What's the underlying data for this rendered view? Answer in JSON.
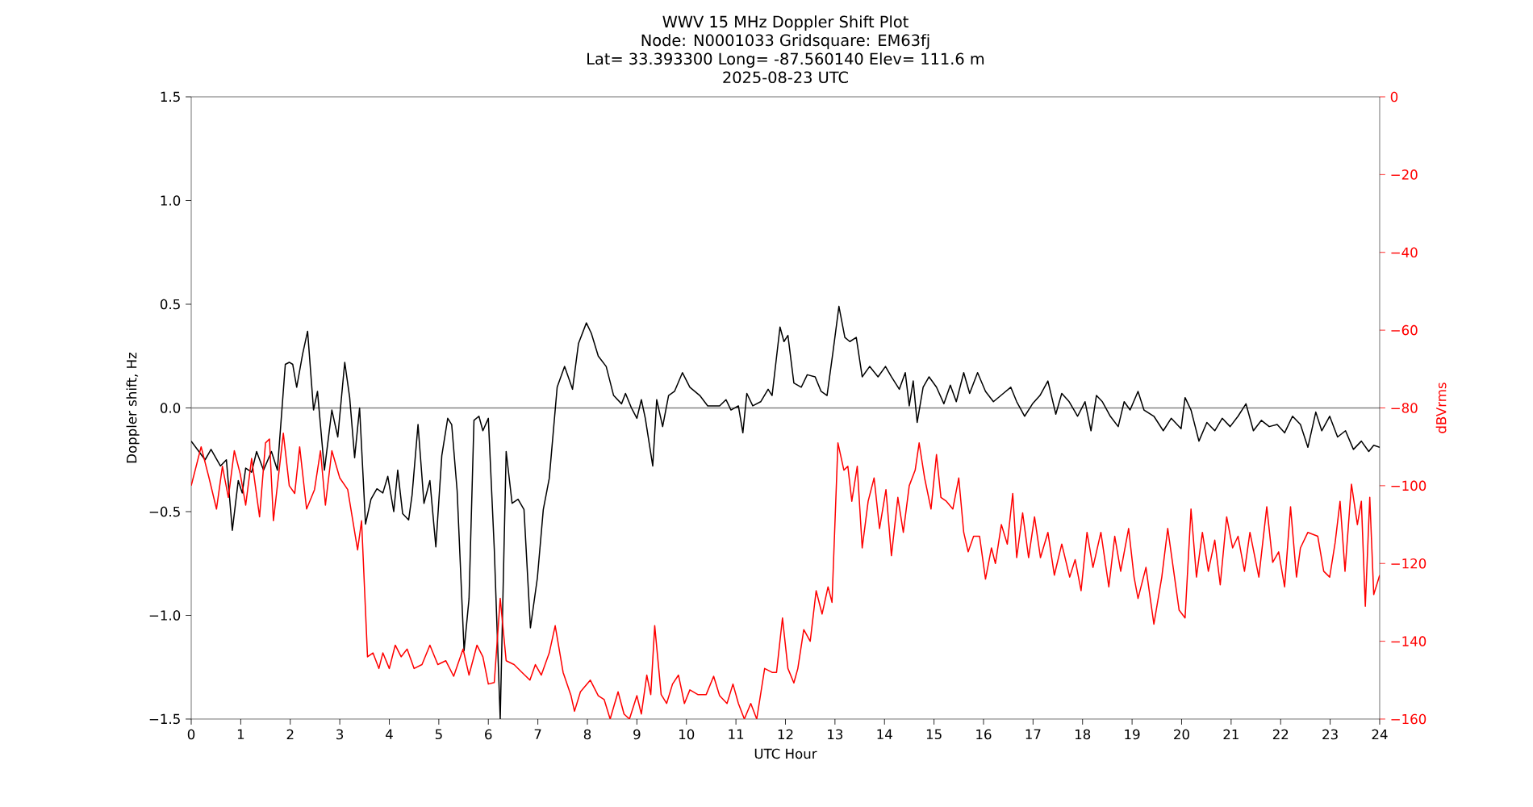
{
  "chart_data": {
    "type": "line",
    "title": "WWV 15 MHz Doppler Shift Plot",
    "subtitle": "Node:  N0001033     Gridsquare:  EM63fj",
    "annotations": [
      "Lat= 33.393300    Long= -87.560140    Elev= 111.6 m",
      "2025-08-23  UTC"
    ],
    "xlabel": "UTC Hour",
    "ylabel": "Doppler shift, Hz",
    "y2label": "dBVrms",
    "xlim": [
      0,
      24
    ],
    "xticks": [
      0,
      1,
      2,
      3,
      4,
      5,
      6,
      7,
      8,
      9,
      10,
      11,
      12,
      13,
      14,
      15,
      16,
      17,
      18,
      19,
      20,
      21,
      22,
      23,
      24
    ],
    "ylim": [
      -1.5,
      1.5
    ],
    "yticks": [
      {
        "value": -1.5,
        "label": "−1.5"
      },
      {
        "value": -1.0,
        "label": "−1.0"
      },
      {
        "value": -0.5,
        "label": "−0.5"
      },
      {
        "value": 0,
        "label": "0.0"
      },
      {
        "value": 0.5,
        "label": "0.5"
      },
      {
        "value": 1.0,
        "label": "1.0"
      },
      {
        "value": 1.5,
        "label": "1.5"
      }
    ],
    "y2lim": [
      -160,
      0
    ],
    "y2ticks": [
      {
        "value": -160,
        "label": "−160"
      },
      {
        "value": -140,
        "label": "−140"
      },
      {
        "value": -120,
        "label": "−120"
      },
      {
        "value": -100,
        "label": "−100"
      },
      {
        "value": -80,
        "label": "−80"
      },
      {
        "value": -60,
        "label": "−60"
      },
      {
        "value": -40,
        "label": "−40"
      },
      {
        "value": -20,
        "label": "−20"
      },
      {
        "value": 0,
        "label": "0"
      }
    ],
    "ref_lines": [
      {
        "axis": "y",
        "value": 0,
        "color": "#808080"
      }
    ],
    "series": [
      {
        "color": "#000000",
        "x": [
          0,
          0.28,
          0.4,
          0.59,
          0.71,
          0.83,
          0.95,
          1.03,
          1.1,
          1.22,
          1.32,
          1.46,
          1.62,
          1.74,
          1.9,
          1.98,
          2.05,
          2.13,
          2.25,
          2.35,
          2.47,
          2.55,
          2.69,
          2.84,
          2.96,
          3.1,
          3.2,
          3.3,
          3.4,
          3.52,
          3.63,
          3.75,
          3.87,
          3.97,
          4.09,
          4.17,
          4.27,
          4.39,
          4.46,
          4.58,
          4.7,
          4.82,
          4.94,
          5.06,
          5.18,
          5.26,
          5.37,
          5.51,
          5.61,
          5.71,
          5.81,
          5.89,
          6.0,
          6.12,
          6.24,
          6.36,
          6.48,
          6.6,
          6.72,
          6.85,
          6.99,
          7.11,
          7.23,
          7.39,
          7.54,
          7.7,
          7.82,
          7.98,
          8.08,
          8.22,
          8.38,
          8.53,
          8.69,
          8.77,
          8.89,
          9.0,
          9.09,
          9.17,
          9.32,
          9.4,
          9.52,
          9.64,
          9.76,
          9.92,
          10.07,
          10.27,
          10.43,
          10.55,
          10.67,
          10.8,
          10.9,
          11.05,
          11.14,
          11.22,
          11.34,
          11.5,
          11.65,
          11.73,
          11.89,
          11.97,
          12.05,
          12.17,
          12.32,
          12.44,
          12.6,
          12.72,
          12.84,
          12.96,
          13.08,
          13.2,
          13.3,
          13.43,
          13.55,
          13.7,
          13.87,
          14.02,
          14.14,
          14.3,
          14.42,
          14.5,
          14.58,
          14.66,
          14.78,
          14.9,
          15.05,
          15.2,
          15.33,
          15.45,
          15.6,
          15.72,
          15.88,
          16.04,
          16.2,
          16.4,
          16.55,
          16.67,
          16.83,
          16.99,
          17.14,
          17.3,
          17.46,
          17.58,
          17.73,
          17.9,
          18.05,
          18.17,
          18.28,
          18.4,
          18.56,
          18.72,
          18.84,
          18.96,
          19.12,
          19.24,
          19.44,
          19.63,
          19.79,
          19.99,
          20.07,
          20.19,
          20.35,
          20.51,
          20.67,
          20.82,
          20.98,
          21.14,
          21.3,
          21.45,
          21.61,
          21.77,
          21.93,
          22.08,
          22.24,
          22.4,
          22.55,
          22.71,
          22.83,
          22.99,
          23.15,
          23.31,
          23.47,
          23.63,
          23.78,
          23.88,
          24
        ],
        "values": [
          -0.16,
          -0.25,
          -0.2,
          -0.28,
          -0.25,
          -0.59,
          -0.35,
          -0.41,
          -0.29,
          -0.31,
          -0.21,
          -0.3,
          -0.21,
          -0.3,
          0.21,
          0.22,
          0.21,
          0.1,
          0.26,
          0.37,
          -0.01,
          0.08,
          -0.3,
          -0.01,
          -0.14,
          0.22,
          0.05,
          -0.24,
          0.0,
          -0.56,
          -0.44,
          -0.39,
          -0.41,
          -0.33,
          -0.5,
          -0.3,
          -0.51,
          -0.54,
          -0.42,
          -0.08,
          -0.46,
          -0.35,
          -0.67,
          -0.23,
          -0.05,
          -0.08,
          -0.4,
          -1.17,
          -0.92,
          -0.06,
          -0.04,
          -0.11,
          -0.05,
          -0.68,
          -1.5,
          -0.21,
          -0.46,
          -0.44,
          -0.49,
          -1.06,
          -0.82,
          -0.49,
          -0.34,
          0.1,
          0.2,
          0.09,
          0.31,
          0.41,
          0.36,
          0.25,
          0.2,
          0.06,
          0.02,
          0.07,
          0.0,
          -0.05,
          0.04,
          -0.05,
          -0.28,
          0.04,
          -0.09,
          0.06,
          0.08,
          0.17,
          0.1,
          0.06,
          0.01,
          0.01,
          0.01,
          0.04,
          -0.01,
          0.01,
          -0.12,
          0.07,
          0.01,
          0.03,
          0.09,
          0.06,
          0.39,
          0.32,
          0.35,
          0.12,
          0.1,
          0.16,
          0.15,
          0.08,
          0.06,
          0.27,
          0.49,
          0.34,
          0.32,
          0.34,
          0.15,
          0.2,
          0.15,
          0.2,
          0.15,
          0.09,
          0.17,
          0.01,
          0.13,
          -0.07,
          0.1,
          0.15,
          0.1,
          0.02,
          0.11,
          0.03,
          0.17,
          0.07,
          0.17,
          0.08,
          0.03,
          0.07,
          0.1,
          0.03,
          -0.04,
          0.02,
          0.06,
          0.13,
          -0.03,
          0.07,
          0.03,
          -0.04,
          0.03,
          -0.11,
          0.06,
          0.03,
          -0.04,
          -0.09,
          0.03,
          -0.01,
          0.08,
          -0.01,
          -0.04,
          -0.11,
          -0.05,
          -0.1,
          0.05,
          -0.01,
          -0.16,
          -0.07,
          -0.11,
          -0.05,
          -0.09,
          -0.04,
          0.02,
          -0.11,
          -0.06,
          -0.09,
          -0.08,
          -0.12,
          -0.04,
          -0.08,
          -0.19,
          -0.02,
          -0.11,
          -0.04,
          -0.14,
          -0.11,
          -0.2,
          -0.16,
          -0.21,
          -0.18,
          -0.19
        ]
      },
      {
        "color": "#ff0000",
        "axis": "y2",
        "x": [
          0,
          0.2,
          0.36,
          0.51,
          0.63,
          0.75,
          0.87,
          0.99,
          1.1,
          1.22,
          1.38,
          1.5,
          1.58,
          1.66,
          1.86,
          1.98,
          2.09,
          2.19,
          2.33,
          2.49,
          2.61,
          2.71,
          2.84,
          3.0,
          3.16,
          3.36,
          3.44,
          3.56,
          3.67,
          3.79,
          3.87,
          4.0,
          4.12,
          4.24,
          4.36,
          4.5,
          4.66,
          4.82,
          4.98,
          5.14,
          5.3,
          5.49,
          5.61,
          5.77,
          5.89,
          6.0,
          6.12,
          6.24,
          6.36,
          6.52,
          6.68,
          6.84,
          6.95,
          7.07,
          7.23,
          7.35,
          7.51,
          7.67,
          7.74,
          7.86,
          8.06,
          8.22,
          8.34,
          8.46,
          8.62,
          8.74,
          8.85,
          9.0,
          9.09,
          9.2,
          9.28,
          9.36,
          9.49,
          9.6,
          9.72,
          9.84,
          9.96,
          10.07,
          10.23,
          10.4,
          10.55,
          10.67,
          10.82,
          10.94,
          11.05,
          11.17,
          11.3,
          11.42,
          11.58,
          11.73,
          11.82,
          11.94,
          12.05,
          12.17,
          12.25,
          12.37,
          12.5,
          12.62,
          12.74,
          12.86,
          12.94,
          13.06,
          13.18,
          13.26,
          13.34,
          13.45,
          13.55,
          13.67,
          13.79,
          13.9,
          14.03,
          14.14,
          14.27,
          14.38,
          14.5,
          14.62,
          14.7,
          14.81,
          14.94,
          15.05,
          15.14,
          15.25,
          15.38,
          15.5,
          15.6,
          15.69,
          15.8,
          15.92,
          16.04,
          16.16,
          16.24,
          16.36,
          16.48,
          16.59,
          16.67,
          16.79,
          16.91,
          17.03,
          17.15,
          17.3,
          17.43,
          17.58,
          17.74,
          17.85,
          17.97,
          18.09,
          18.21,
          18.37,
          18.53,
          18.65,
          18.77,
          18.93,
          19.04,
          19.12,
          19.28,
          19.44,
          19.6,
          19.72,
          19.83,
          19.95,
          20.07,
          20.19,
          20.3,
          20.42,
          20.54,
          20.67,
          20.78,
          20.91,
          21.03,
          21.14,
          21.27,
          21.38,
          21.56,
          21.72,
          21.84,
          21.96,
          22.08,
          22.2,
          22.32,
          22.4,
          22.55,
          22.75,
          22.87,
          22.99,
          23.1,
          23.2,
          23.3,
          23.43,
          23.55,
          23.63,
          23.71,
          23.8,
          23.88,
          24
        ],
        "values": [
          -100,
          -90,
          -98,
          -106,
          -95,
          -103,
          -91,
          -97,
          -105,
          -93,
          -108,
          -89,
          -88,
          -109,
          -86.5,
          -100,
          -102,
          -90,
          -106,
          -101,
          -91,
          -105,
          -91,
          -98,
          -101,
          -116.5,
          -109,
          -144,
          -143,
          -147,
          -143,
          -147,
          -141,
          -144,
          -142,
          -147,
          -146,
          -141,
          -146,
          -145,
          -149,
          -142,
          -148.7,
          -141,
          -144,
          -151,
          -150.6,
          -129,
          -145,
          -146,
          -148,
          -150,
          -146,
          -148.7,
          -143,
          -136,
          -148,
          -154,
          -158,
          -153,
          -150,
          -154,
          -155,
          -160,
          -153,
          -158.7,
          -160,
          -154,
          -158.7,
          -148.7,
          -153.7,
          -136,
          -153.7,
          -156,
          -151,
          -148.7,
          -156,
          -152.5,
          -153.7,
          -153.7,
          -149,
          -154,
          -156,
          -151,
          -156,
          -160,
          -156,
          -160,
          -147,
          -148,
          -148,
          -134,
          -147,
          -150.7,
          -147,
          -137,
          -140,
          -127,
          -133,
          -126,
          -130,
          -89,
          -96,
          -95,
          -104,
          -95,
          -116,
          -104,
          -98,
          -111,
          -101,
          -118,
          -103,
          -112,
          -100,
          -96,
          -89,
          -98,
          -106,
          -92,
          -103,
          -104,
          -106,
          -98,
          -112,
          -117,
          -113,
          -113,
          -124,
          -116,
          -120,
          -110,
          -115,
          -102,
          -118.5,
          -107,
          -118.5,
          -108,
          -118.5,
          -112,
          -123,
          -115,
          -123.5,
          -119,
          -127,
          -112,
          -121,
          -112,
          -126,
          -113,
          -122,
          -111,
          -123.5,
          -129,
          -121,
          -135.6,
          -123.5,
          -111,
          -121,
          -132,
          -134,
          -106,
          -123.5,
          -112,
          -122,
          -114,
          -125.5,
          -108,
          -116,
          -113,
          -122,
          -112,
          -123.5,
          -105.4,
          -119.7,
          -117,
          -126,
          -105.4,
          -123.5,
          -116,
          -112,
          -113,
          -122,
          -123.5,
          -114.7,
          -104,
          -122,
          -99.6,
          -110,
          -104,
          -131,
          -103,
          -128,
          -123
        ]
      }
    ]
  }
}
